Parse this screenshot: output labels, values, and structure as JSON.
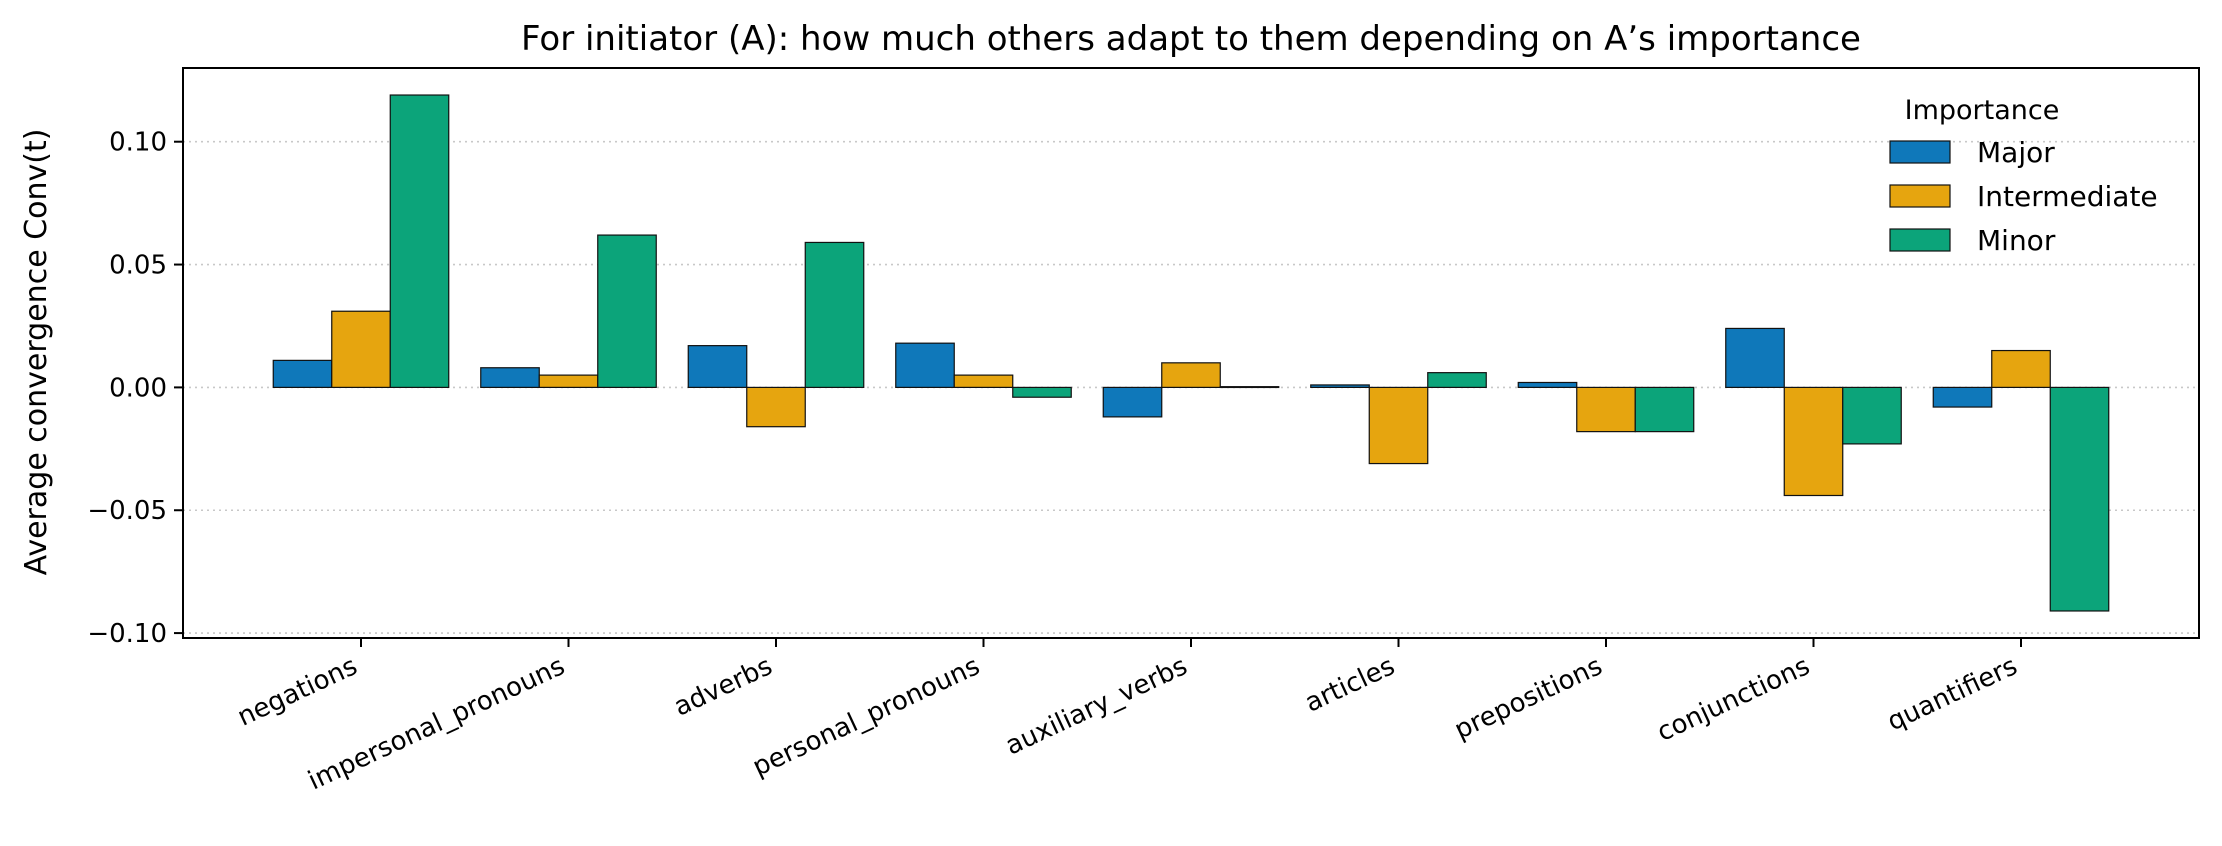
{
  "chart_data": {
    "type": "bar",
    "title": "For initiator (A): how much others adapt to them depending on A’s importance",
    "xlabel": "",
    "ylabel": "Average convergence  Conv(t)",
    "ylim": [
      -0.102,
      0.13
    ],
    "yticks": [
      -0.1,
      -0.05,
      0.0,
      0.05,
      0.1
    ],
    "ytick_labels": [
      "−0.10",
      "−0.05",
      "0.00",
      "0.05",
      "0.10"
    ],
    "grid": "horizontal dotted",
    "categories": [
      "negations",
      "impersonal_pronouns",
      "adverbs",
      "personal_pronouns",
      "auxiliary_verbs",
      "articles",
      "prepositions",
      "conjunctions",
      "quantifiers"
    ],
    "series": [
      {
        "name": "Major",
        "color": "#0F78BA",
        "values": [
          0.011,
          0.008,
          0.017,
          0.018,
          -0.012,
          0.001,
          0.002,
          0.024,
          -0.008
        ]
      },
      {
        "name": "Intermediate",
        "color": "#E6A50F",
        "values": [
          0.031,
          0.005,
          -0.016,
          0.005,
          0.01,
          -0.031,
          -0.018,
          -0.044,
          0.015
        ]
      },
      {
        "name": "Minor",
        "color": "#0CA47A",
        "values": [
          0.119,
          0.062,
          0.059,
          -0.004,
          0.0003,
          0.006,
          -0.018,
          -0.023,
          -0.091
        ]
      }
    ],
    "legend": {
      "title": "Importance",
      "placement": "top-right"
    }
  }
}
